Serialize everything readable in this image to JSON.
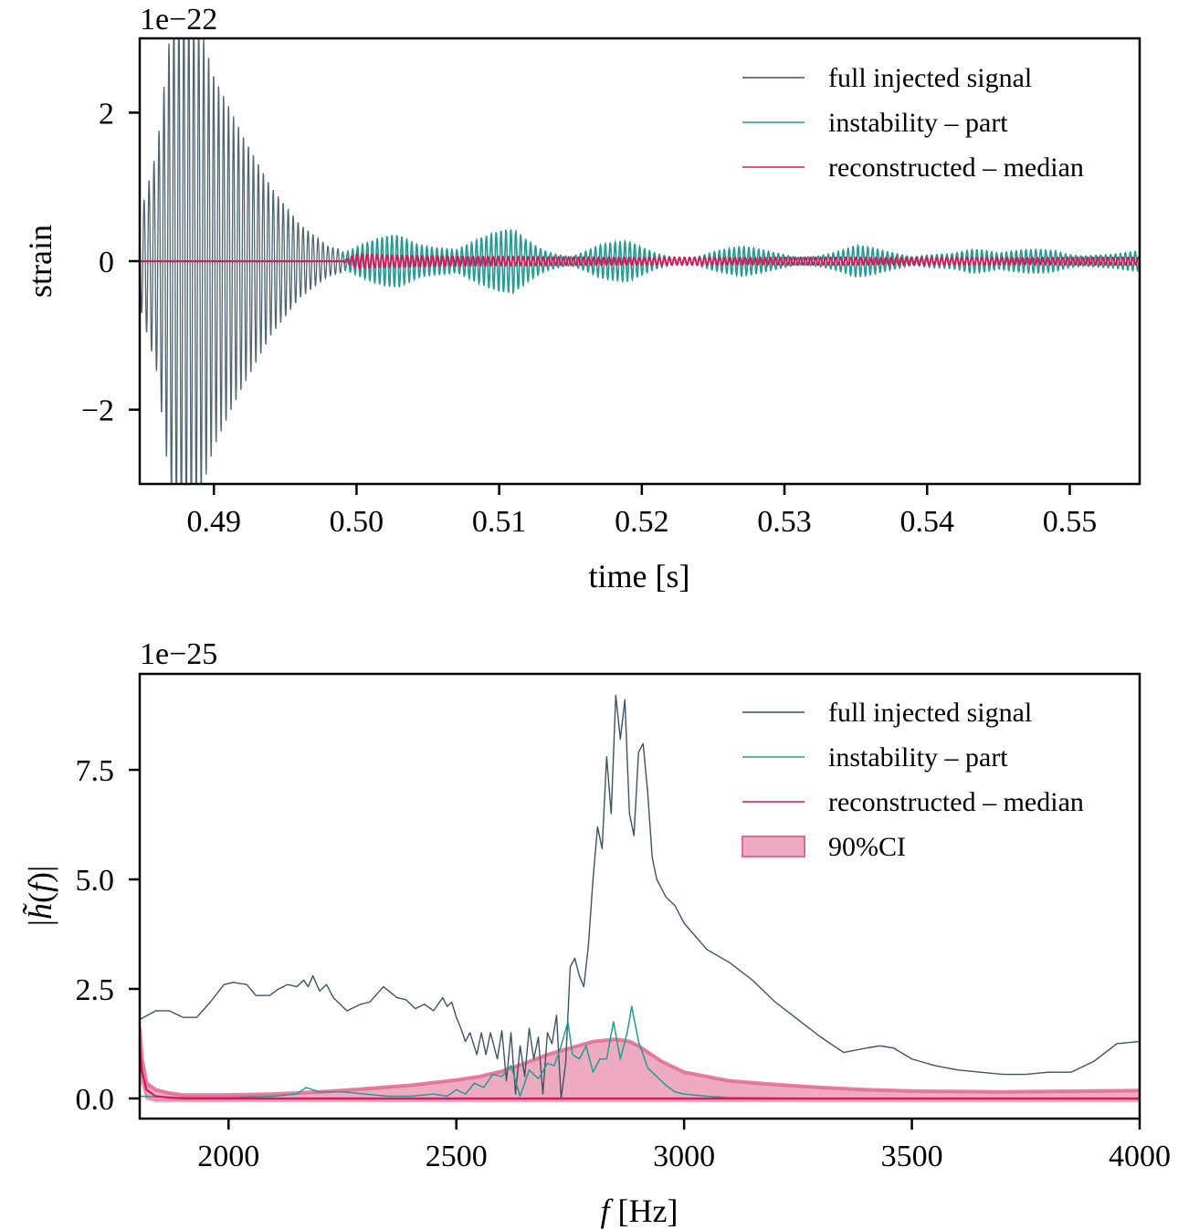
{
  "colors": {
    "full": "#3d5461",
    "instability": "#1f9e91",
    "median": "#d6195a",
    "ci_fill": "#eeaac0",
    "ci_edge": "#e26a92"
  },
  "chart_data": [
    {
      "type": "line",
      "title": "",
      "offset_text": "1e−22",
      "xlabel": "time [s]",
      "ylabel": "strain",
      "xlim": [
        0.4848,
        0.5549
      ],
      "ylim": [
        -3.0,
        3.0
      ],
      "xticks": [
        0.49,
        0.5,
        0.51,
        0.52,
        0.53,
        0.54,
        0.55
      ],
      "xtick_labels": [
        "0.49",
        "0.50",
        "0.51",
        "0.52",
        "0.53",
        "0.54",
        "0.55"
      ],
      "yticks": [
        -2,
        0,
        2
      ],
      "ytick_labels": [
        "−2",
        "0",
        "2"
      ],
      "grid": false,
      "legend": {
        "placement": "top-right",
        "entries": [
          {
            "label": "full injected signal",
            "series": "full"
          },
          {
            "label": "instability – part",
            "series": "instability"
          },
          {
            "label": "reconstructed – median",
            "series": "median"
          }
        ]
      },
      "series": [
        {
          "name": "full injected signal",
          "key": "full",
          "description": "decaying ringdown oscillation, ~2.9 kHz, amplitude envelope exceeding axis (>3e-22) near t=0.487-0.489 s, decaying to ~0.1 by t=0.499 s, then following the instability part",
          "envelope": {
            "t": [
              0.4848,
              0.486,
              0.487,
              0.488,
              0.489,
              0.49,
              0.492,
              0.494,
              0.496,
              0.498,
              0.5
            ],
            "amp": [
              0.6,
              1.5,
              3.2,
              3.5,
              3.2,
              2.5,
              1.7,
              1.0,
              0.5,
              0.2,
              0.1
            ]
          },
          "freq_hz": 2870
        },
        {
          "name": "instability – part",
          "key": "instability",
          "description": "beating oscillation starting near t=0.499 s with envelope bursts",
          "envelope": {
            "t": [
              0.499,
              0.501,
              0.503,
              0.505,
              0.507,
              0.509,
              0.511,
              0.513,
              0.515,
              0.517,
              0.519,
              0.521,
              0.523,
              0.525,
              0.527,
              0.529,
              0.531,
              0.533,
              0.535,
              0.537,
              0.539,
              0.541,
              0.543,
              0.545,
              0.547,
              0.549,
              0.551,
              0.553,
              0.5549
            ],
            "amp": [
              0.08,
              0.2,
              0.35,
              0.3,
              0.15,
              0.25,
              0.35,
              0.2,
              0.08,
              0.18,
              0.2,
              0.1,
              0.05,
              0.13,
              0.15,
              0.1,
              0.06,
              0.13,
              0.18,
              0.1,
              0.05,
              0.14,
              0.17,
              0.08,
              0.12,
              0.16,
              0.1,
              0.08,
              0.1
            ]
          },
          "freq_hz": 2880
        },
        {
          "name": "reconstructed – median",
          "key": "median",
          "description": "flat near zero before t=0.499 s, then small oscillation amplitude ~0.05-0.1",
          "envelope": {
            "t": [
              0.4848,
              0.499,
              0.5,
              0.502,
              0.51,
              0.52,
              0.53,
              0.54,
              0.5549
            ],
            "amp": [
              0.0,
              0.0,
              0.1,
              0.08,
              0.06,
              0.05,
              0.05,
              0.05,
              0.05
            ]
          },
          "freq_hz": 2830
        }
      ]
    },
    {
      "type": "line",
      "title": "",
      "offset_text": "1e−25",
      "xlabel": "f [Hz]",
      "ylabel": "|h̃(f)|",
      "xlim": [
        1805,
        4000
      ],
      "ylim": [
        -0.46,
        9.69
      ],
      "xticks": [
        2000,
        2500,
        3000,
        3500,
        4000
      ],
      "xtick_labels": [
        "2000",
        "2500",
        "3000",
        "3500",
        "4000"
      ],
      "yticks": [
        0.0,
        2.5,
        5.0,
        7.5
      ],
      "ytick_labels": [
        "0.0",
        "2.5",
        "5.0",
        "7.5"
      ],
      "grid": false,
      "legend": {
        "placement": "top-right",
        "entries": [
          {
            "label": "full injected signal",
            "series": "full"
          },
          {
            "label": "instability – part",
            "series": "instability"
          },
          {
            "label": "reconstructed – median",
            "series": "median"
          },
          {
            "label": "90%CI",
            "series": "ci"
          }
        ]
      },
      "series": [
        {
          "name": "full injected signal",
          "key": "full",
          "x": [
            1805,
            1840,
            1870,
            1900,
            1930,
            1960,
            1990,
            2010,
            2040,
            2060,
            2090,
            2110,
            2130,
            2150,
            2165,
            2175,
            2185,
            2200,
            2215,
            2230,
            2260,
            2290,
            2310,
            2340,
            2370,
            2390,
            2410,
            2430,
            2450,
            2470,
            2480,
            2490,
            2500,
            2510,
            2520,
            2530,
            2545,
            2555,
            2565,
            2575,
            2590,
            2600,
            2610,
            2620,
            2630,
            2640,
            2650,
            2660,
            2670,
            2680,
            2690,
            2700,
            2710,
            2720,
            2730,
            2740,
            2750,
            2760,
            2770,
            2780,
            2790,
            2800,
            2810,
            2820,
            2830,
            2840,
            2850,
            2860,
            2870,
            2880,
            2890,
            2900,
            2910,
            2920,
            2930,
            2940,
            2960,
            2980,
            3000,
            3050,
            3100,
            3150,
            3200,
            3250,
            3300,
            3350,
            3400,
            3430,
            3460,
            3500,
            3550,
            3600,
            3650,
            3700,
            3750,
            3800,
            3850,
            3900,
            3950,
            4000
          ],
          "y": [
            1.8,
            2.0,
            2.0,
            1.85,
            1.85,
            2.2,
            2.6,
            2.65,
            2.6,
            2.35,
            2.35,
            2.5,
            2.6,
            2.55,
            2.7,
            2.55,
            2.8,
            2.45,
            2.6,
            2.3,
            2.0,
            2.15,
            2.2,
            2.55,
            2.3,
            2.25,
            2.05,
            2.15,
            2.0,
            2.3,
            2.1,
            2.2,
            1.85,
            1.6,
            1.3,
            1.5,
            1.0,
            1.5,
            1.0,
            1.5,
            0.9,
            1.55,
            0.4,
            1.5,
            0.1,
            1.2,
            0.5,
            1.6,
            0.9,
            1.4,
            0.1,
            1.5,
            1.25,
            1.9,
            0.0,
            0.8,
            3.0,
            3.2,
            2.8,
            2.55,
            3.5,
            5.0,
            6.2,
            5.7,
            7.8,
            6.5,
            9.2,
            8.2,
            9.1,
            6.5,
            6.0,
            7.9,
            8.1,
            7.0,
            5.5,
            5.0,
            4.6,
            4.4,
            4.0,
            3.4,
            3.1,
            2.7,
            2.2,
            1.8,
            1.4,
            1.05,
            1.15,
            1.2,
            1.15,
            0.9,
            0.75,
            0.65,
            0.6,
            0.55,
            0.55,
            0.6,
            0.6,
            0.85,
            1.25,
            1.3
          ]
        },
        {
          "name": "instability – part",
          "key": "instability",
          "x": [
            1805,
            1900,
            2000,
            2100,
            2150,
            2170,
            2200,
            2250,
            2300,
            2350,
            2400,
            2450,
            2480,
            2500,
            2520,
            2540,
            2560,
            2580,
            2600,
            2620,
            2640,
            2660,
            2680,
            2700,
            2715,
            2730,
            2745,
            2755,
            2770,
            2785,
            2800,
            2815,
            2830,
            2845,
            2860,
            2875,
            2885,
            2900,
            2920,
            2940,
            2960,
            2980,
            3000,
            3050,
            3100,
            3200,
            3300,
            3500,
            3800,
            4000
          ],
          "y": [
            0.05,
            0.02,
            0.02,
            0.05,
            0.1,
            0.25,
            0.15,
            0.15,
            0.1,
            0.05,
            0.05,
            0.1,
            0.05,
            0.2,
            0.1,
            0.35,
            0.25,
            0.55,
            0.5,
            0.75,
            0.05,
            0.65,
            0.45,
            0.8,
            0.75,
            1.2,
            1.75,
            1.0,
            0.9,
            1.2,
            0.6,
            0.9,
            0.9,
            1.75,
            0.9,
            1.5,
            2.1,
            1.3,
            0.7,
            0.5,
            0.3,
            0.15,
            0.1,
            0.05,
            0.02,
            0.01,
            0.0,
            0.0,
            0.0,
            0.0
          ]
        },
        {
          "name": "reconstructed – median",
          "key": "median",
          "x": [
            1805,
            1810,
            1820,
            1840,
            1870,
            1900,
            2000,
            2500,
            3000,
            3500,
            4000
          ],
          "y": [
            1.2,
            0.6,
            0.2,
            0.05,
            0.02,
            0.0,
            0.0,
            0.0,
            0.0,
            0.0,
            0.0
          ]
        },
        {
          "name": "90%CI",
          "key": "ci",
          "type": "band",
          "x": [
            1805,
            1810,
            1820,
            1840,
            1870,
            1900,
            2000,
            2100,
            2200,
            2300,
            2400,
            2500,
            2550,
            2600,
            2650,
            2700,
            2750,
            2800,
            2850,
            2880,
            2900,
            2950,
            3000,
            3100,
            3200,
            3300,
            3400,
            3500,
            3700,
            4000
          ],
          "lower": [
            1.0,
            0.4,
            0.0,
            -0.05,
            -0.05,
            -0.05,
            -0.05,
            -0.05,
            -0.05,
            -0.05,
            -0.05,
            -0.05,
            -0.05,
            -0.05,
            -0.05,
            -0.05,
            -0.05,
            -0.05,
            -0.05,
            -0.05,
            -0.05,
            -0.05,
            -0.05,
            -0.05,
            -0.05,
            -0.05,
            -0.05,
            -0.05,
            -0.05,
            -0.05
          ],
          "upper": [
            1.6,
            0.9,
            0.35,
            0.2,
            0.12,
            0.08,
            0.08,
            0.1,
            0.15,
            0.22,
            0.3,
            0.42,
            0.5,
            0.62,
            0.8,
            1.0,
            1.15,
            1.3,
            1.35,
            1.3,
            1.2,
            0.85,
            0.6,
            0.4,
            0.32,
            0.25,
            0.2,
            0.17,
            0.15,
            0.18
          ]
        }
      ]
    }
  ]
}
